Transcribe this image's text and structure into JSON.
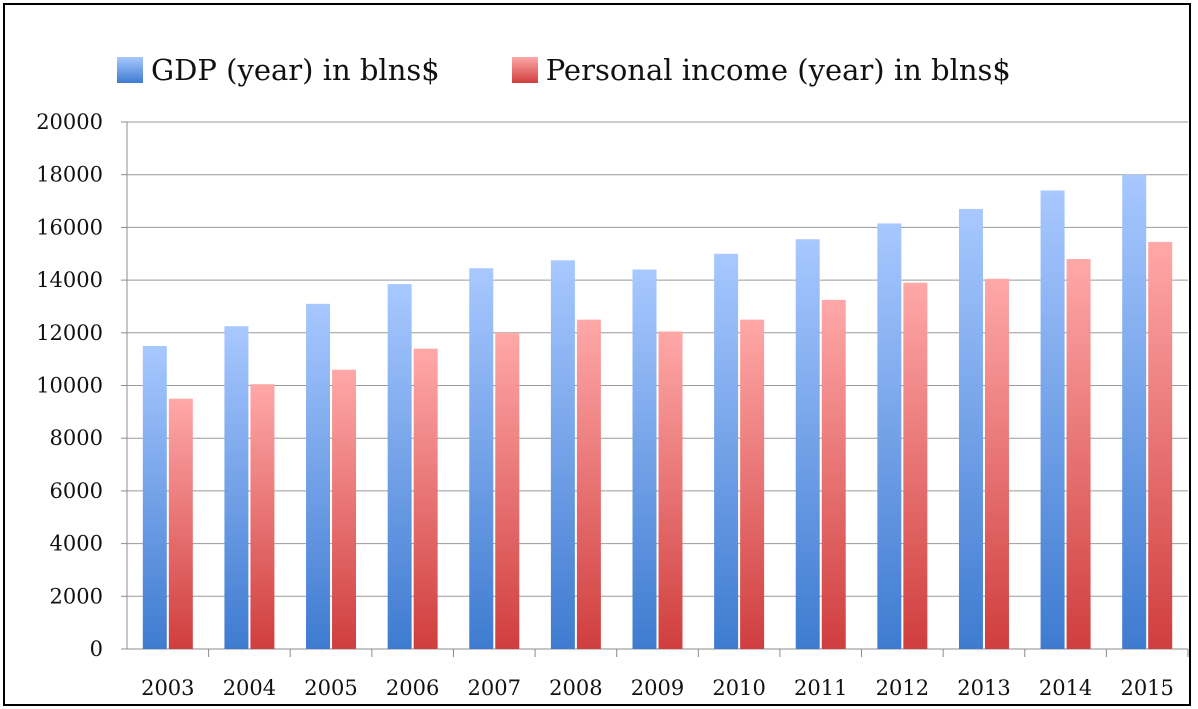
{
  "chart_data": {
    "type": "bar",
    "categories": [
      "2003",
      "2004",
      "2005",
      "2006",
      "2007",
      "2008",
      "2009",
      "2010",
      "2011",
      "2012",
      "2013",
      "2014",
      "2015"
    ],
    "series": [
      {
        "name": "GDP (year) in blns$",
        "values": [
          11500,
          12250,
          13100,
          13850,
          14450,
          14750,
          14400,
          15000,
          15550,
          16150,
          16700,
          17400,
          18000
        ],
        "color_top": "#a8c8ff",
        "color_bottom": "#3e7bd0"
      },
      {
        "name": "Personal income (year) in blns$",
        "values": [
          9500,
          10050,
          10600,
          11400,
          12000,
          12500,
          12050,
          12500,
          13250,
          13900,
          14050,
          14800,
          15450
        ],
        "color_top": "#ffa8a8",
        "color_bottom": "#d03e3e"
      }
    ],
    "ylim": [
      0,
      20000
    ],
    "yticks": [
      0,
      2000,
      4000,
      6000,
      8000,
      10000,
      12000,
      14000,
      16000,
      18000,
      20000
    ],
    "grid": true,
    "legend_position": "top"
  }
}
